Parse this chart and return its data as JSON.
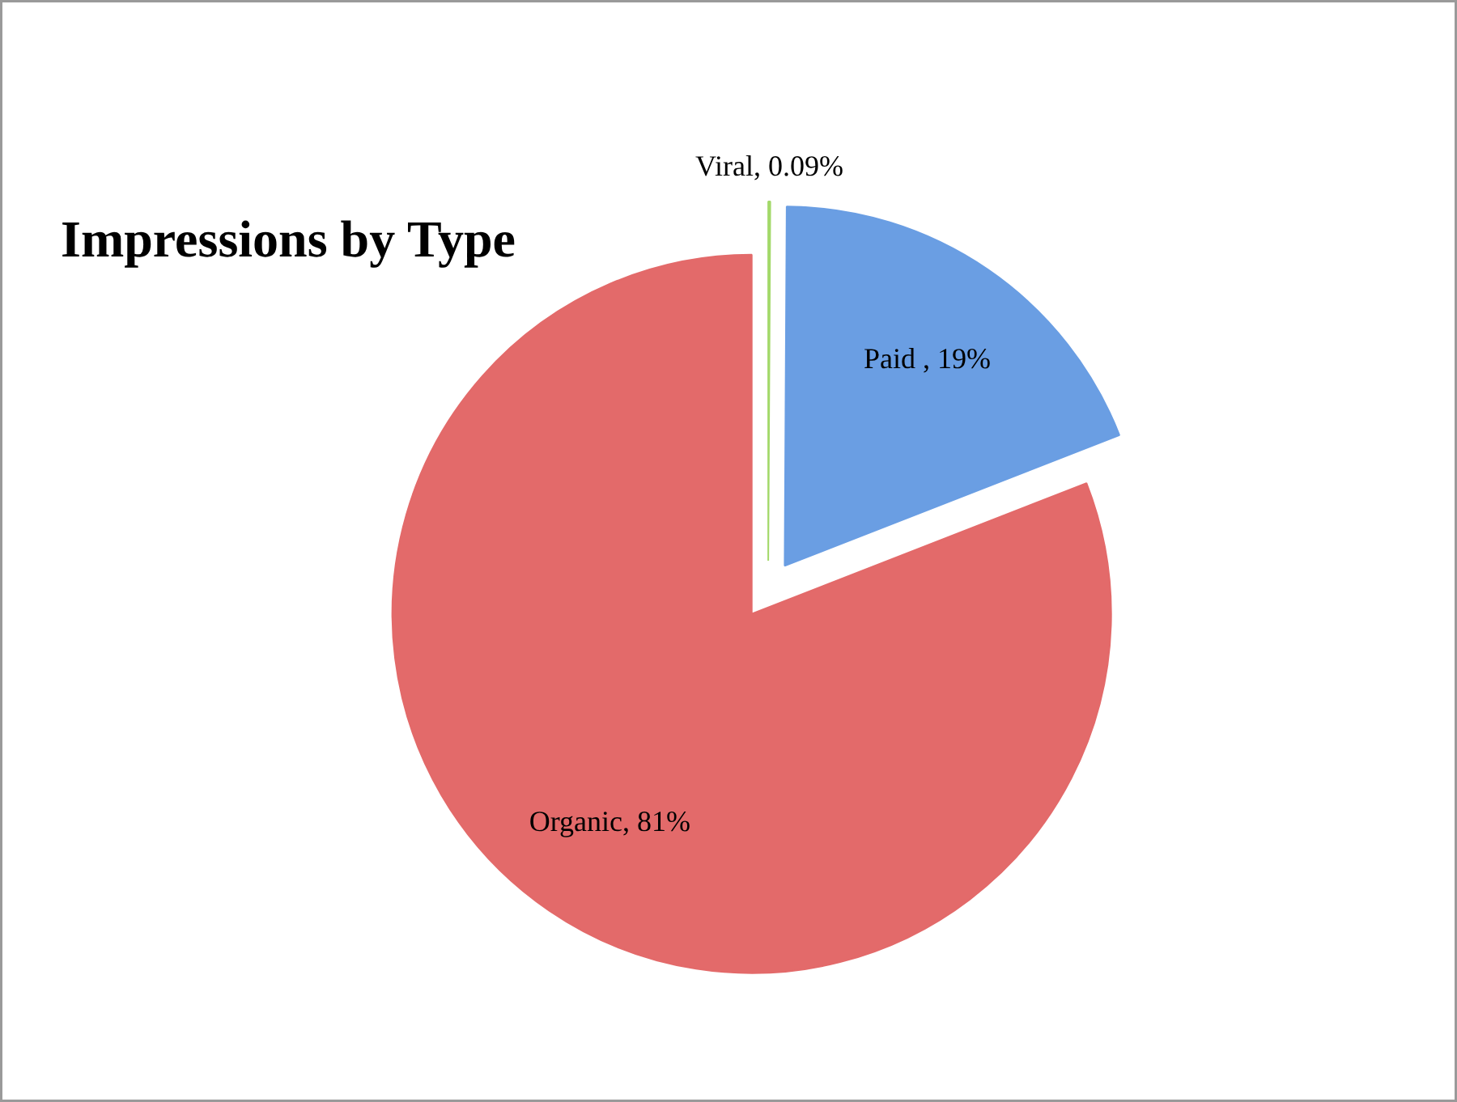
{
  "chart_data": {
    "type": "pie",
    "title": "Impressions by Type",
    "categories": [
      "Viral",
      "Paid ",
      "Organic"
    ],
    "values": [
      0.09,
      19,
      81
    ],
    "value_labels": [
      "0.09%",
      "19%",
      "81%"
    ],
    "colors": [
      "#a3d96a",
      "#6a9ee3",
      "#e36a6a"
    ]
  }
}
